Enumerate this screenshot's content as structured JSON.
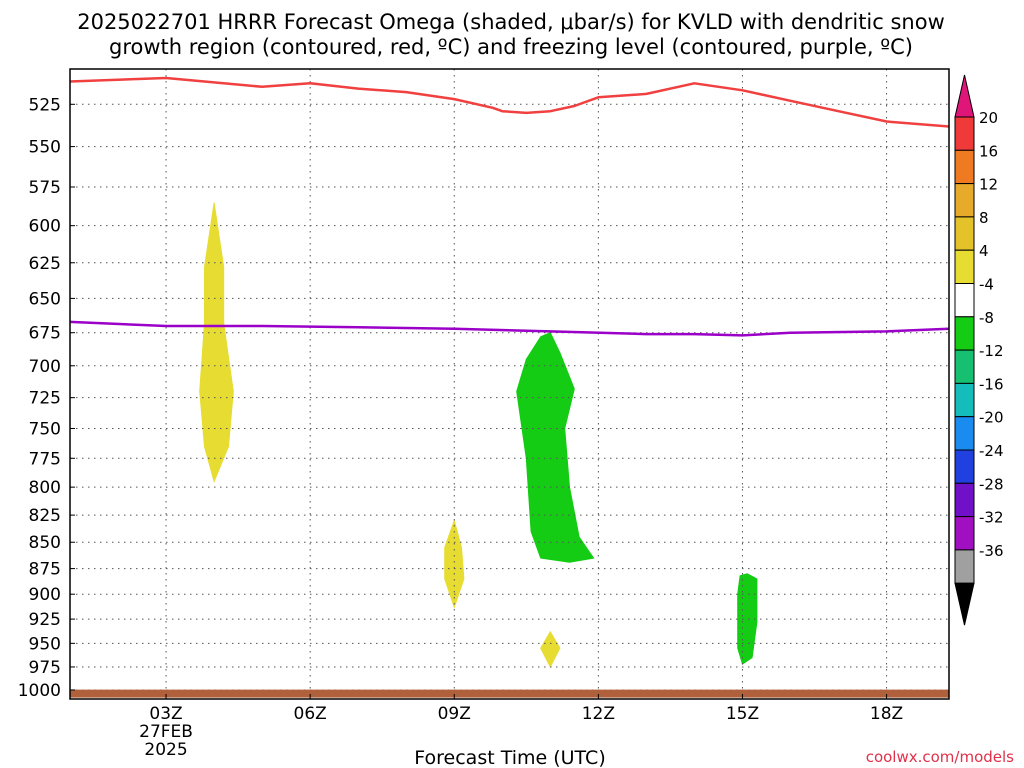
{
  "title_line1": "2025022701 HRRR Forecast Omega (shaded, μbar/s) for KVLD with dendritic snow",
  "title_line2": "growth region (contoured, red, ºC) and freezing level (contoured, purple, ºC)",
  "credit": "coolwx.com/models",
  "chart_data": {
    "type": "heatmap",
    "title": "2025022701 HRRR Forecast Omega (shaded, μbar/s) for KVLD with dendritic snow growth region (contoured, red, ºC) and freezing level (contoured, purple, ºC)",
    "xlabel": "Forecast Time (UTC)",
    "ylabel": "",
    "x_unit": "hours after 00Z 27FEB2025",
    "xlim": [
      1,
      19.3
    ],
    "ylim": [
      1010,
      505
    ],
    "y_scale": "log-pressure (inverted)",
    "x_ticks": [
      {
        "x": 3,
        "label": "03Z",
        "sub": [
          "27FEB",
          "2025"
        ]
      },
      {
        "x": 6,
        "label": "06Z"
      },
      {
        "x": 9,
        "label": "09Z"
      },
      {
        "x": 12,
        "label": "12Z"
      },
      {
        "x": 15,
        "label": "15Z"
      },
      {
        "x": 18,
        "label": "18Z"
      }
    ],
    "y_ticks": [
      525,
      550,
      575,
      600,
      625,
      650,
      675,
      700,
      725,
      750,
      775,
      800,
      825,
      850,
      875,
      900,
      925,
      950,
      975,
      1000
    ],
    "grid": true,
    "colorbar": {
      "labels": [
        "20",
        "16",
        "12",
        "8",
        "4",
        "-4",
        "-8",
        "-12",
        "-16",
        "-20",
        "-24",
        "-28",
        "-32",
        "-36"
      ],
      "colors": [
        "#f03a3a",
        "#f07a22",
        "#e8aa2a",
        "#e3c22a",
        "#e6dc32",
        "#ffffff",
        "#13cc13",
        "#16c070",
        "#14bcbc",
        "#1a8cf0",
        "#2040e0",
        "#7010c8",
        "#a010c0",
        "#a0a0a0"
      ],
      "top_extend_color": "#e0157a",
      "bottom_extend_color": "#000000"
    },
    "shaded_regions": [
      {
        "name": "omega 4 to 8",
        "color": "#e6dc32",
        "points": [
          [
            4.0,
            585
          ],
          [
            4.2,
            628
          ],
          [
            4.2,
            668
          ],
          [
            4.4,
            720
          ],
          [
            4.3,
            765
          ],
          [
            4.0,
            795
          ],
          [
            3.8,
            765
          ],
          [
            3.7,
            720
          ],
          [
            3.8,
            668
          ],
          [
            3.8,
            628
          ]
        ]
      },
      {
        "name": "omega 4 to 8",
        "color": "#e6dc32",
        "points": [
          [
            9.0,
            830
          ],
          [
            9.15,
            855
          ],
          [
            9.2,
            885
          ],
          [
            9.0,
            913
          ],
          [
            8.8,
            885
          ],
          [
            8.8,
            855
          ]
        ]
      },
      {
        "name": "omega 4 to 8",
        "color": "#e6dc32",
        "points": [
          [
            11.0,
            938
          ],
          [
            11.2,
            955
          ],
          [
            11.0,
            975
          ],
          [
            10.8,
            955
          ]
        ]
      },
      {
        "name": "omega -4 to -8",
        "color": "#13cc13",
        "points": [
          [
            11.0,
            675
          ],
          [
            11.2,
            690
          ],
          [
            11.5,
            718
          ],
          [
            11.3,
            750
          ],
          [
            11.4,
            800
          ],
          [
            11.6,
            845
          ],
          [
            11.9,
            865
          ],
          [
            11.4,
            869
          ],
          [
            10.8,
            865
          ],
          [
            10.6,
            840
          ],
          [
            10.5,
            775
          ],
          [
            10.3,
            720
          ],
          [
            10.5,
            695
          ],
          [
            10.8,
            678
          ]
        ]
      },
      {
        "name": "omega -4 to -8",
        "color": "#13cc13",
        "points": [
          [
            15.1,
            880
          ],
          [
            15.3,
            885
          ],
          [
            15.3,
            928
          ],
          [
            15.2,
            965
          ],
          [
            15.0,
            972
          ],
          [
            14.9,
            955
          ],
          [
            14.9,
            900
          ],
          [
            14.95,
            882
          ]
        ]
      }
    ],
    "series": [
      {
        "color": "#f04040",
        "x": [
          1.0,
          3.0,
          5.0,
          6.0,
          7.0,
          8.0,
          9.0,
          9.8,
          10.0,
          10.5,
          11.0,
          11.5,
          12.0,
          13.0,
          14.0,
          15.0,
          16.0,
          17.0,
          18.0,
          19.3
        ],
        "y": [
          512,
          510,
          515,
          513,
          516,
          518,
          522,
          527,
          529,
          530,
          529,
          526,
          521,
          519,
          513,
          517,
          523,
          529,
          535,
          538
        ]
      },
      {
        "color": "#9b00c8",
        "x": [
          1.0,
          3.0,
          5.0,
          7.0,
          9.0,
          11.0,
          13.0,
          14.0,
          15.0,
          16.0,
          18.0,
          19.3
        ],
        "y": [
          667,
          670,
          670,
          671,
          672,
          674,
          676,
          676,
          677,
          675,
          674,
          672
        ]
      },
      {
        "color": "#b0603a",
        "x": [
          1.0,
          5.0,
          10.0,
          15.0,
          19.3
        ],
        "y": [
          1004,
          1004,
          1004,
          1004,
          1004
        ]
      }
    ]
  }
}
